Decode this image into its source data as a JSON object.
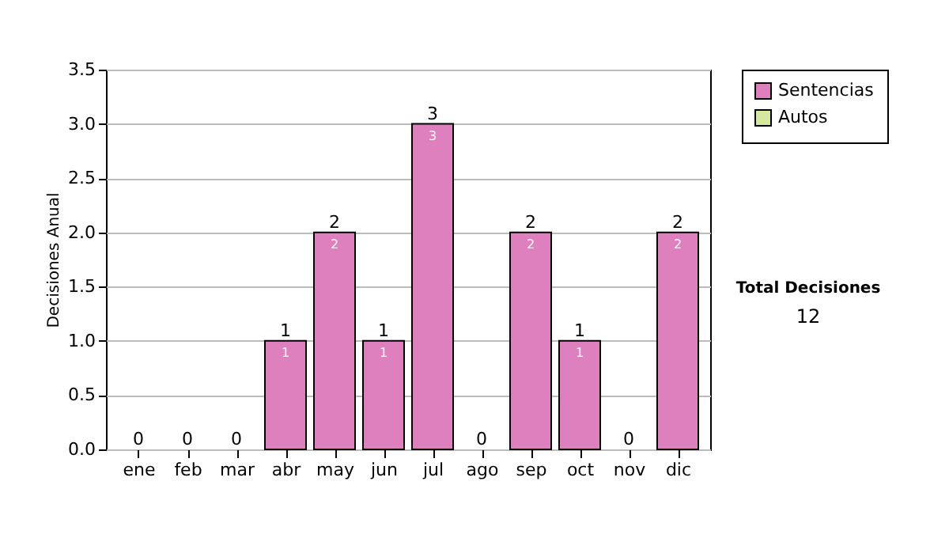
{
  "chart_data": {
    "type": "bar",
    "stacked": true,
    "ylabel": "Decisiones Anual",
    "categories": [
      "ene",
      "feb",
      "mar",
      "abr",
      "may",
      "jun",
      "jul",
      "ago",
      "sep",
      "oct",
      "nov",
      "dic"
    ],
    "series": [
      {
        "name": "Sentencias",
        "color": "#dd80bd",
        "values": [
          0,
          0,
          0,
          1,
          2,
          1,
          3,
          0,
          2,
          1,
          0,
          2
        ],
        "value_labels": [
          null,
          null,
          null,
          "1",
          "2",
          "1",
          "3",
          null,
          "2",
          "1",
          null,
          "2"
        ]
      },
      {
        "name": "Autos",
        "color": "#d5e8a0",
        "values": [
          0,
          0,
          0,
          0,
          0,
          0,
          0,
          0,
          0,
          0,
          0,
          0
        ]
      }
    ],
    "totals": [
      "0",
      "0",
      "0",
      "1",
      "2",
      "1",
      "3",
      "0",
      "2",
      "1",
      "0",
      "2"
    ],
    "ylim": [
      0,
      3.5
    ],
    "yticks": [
      {
        "value": 0,
        "label": "0.0"
      },
      0.5,
      {
        "value": 1,
        "label": "1.0"
      },
      1.5,
      {
        "value": 2,
        "label": "2.0"
      },
      2.5,
      {
        "value": 3,
        "label": "3.0"
      },
      3.5
    ],
    "grid": "y",
    "legend": "right",
    "annotations": [
      "Total Decisiones",
      "12"
    ]
  }
}
